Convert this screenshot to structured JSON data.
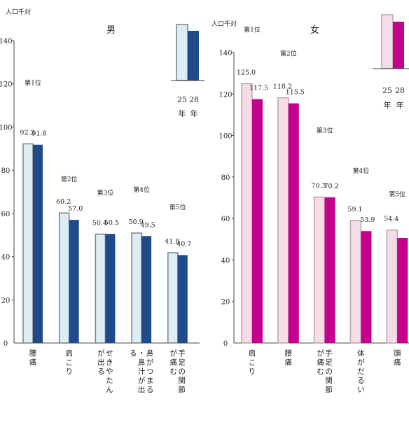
{
  "chart_data": [
    {
      "type": "bar",
      "title": "男",
      "ylabel": "人口千対",
      "ylim": [
        0,
        140
      ],
      "yticks": [
        "0",
        "20",
        "40",
        "60",
        "80",
        "100",
        "120",
        "140"
      ],
      "categories": [
        "腰痛",
        "肩こり",
        "せきやたんが出る",
        "鼻がつまる・鼻汁が出る",
        "手足の関節が痛む"
      ],
      "ranks": [
        "第1位",
        "第2位",
        "第3位",
        "第4位",
        "第5位"
      ],
      "series": [
        {
          "name": "25年",
          "values": [
            92.2,
            60.2,
            50.4,
            50.9,
            41.8
          ],
          "labels": [
            "92.2",
            "60.2",
            "50.4",
            "50.9",
            "41.8"
          ]
        },
        {
          "name": "28年",
          "values": [
            91.8,
            57.0,
            50.5,
            49.5,
            40.7
          ],
          "labels": [
            "91.8",
            "57.0",
            "50.5",
            "49.5",
            "40.7"
          ]
        }
      ],
      "colors": {
        "year25": "#dcedf5",
        "year28": "#1f4b8a"
      },
      "legend": {
        "year_25": "25",
        "year_28": "28",
        "nen": "年"
      },
      "grid": false
    },
    {
      "type": "bar",
      "title": "女",
      "ylabel": "人口千対",
      "ylim": [
        0,
        140
      ],
      "yticks": [
        "0",
        "20",
        "40",
        "60",
        "80",
        "100",
        "120",
        "140"
      ],
      "categories": [
        "肩こり",
        "腰痛",
        "手足の関節が痛む",
        "体がだるい",
        "頭痛"
      ],
      "ranks": [
        "第1位",
        "第2位",
        "第3位",
        "第4位",
        "第5位"
      ],
      "series": [
        {
          "name": "25年",
          "values": [
            125.0,
            118.2,
            70.3,
            59.1,
            54.4
          ],
          "labels": [
            "125.0",
            "118.2",
            "70.3",
            "59.1",
            "54.4"
          ]
        },
        {
          "name": "28年",
          "values": [
            117.5,
            115.5,
            70.2,
            53.9,
            50.6
          ],
          "labels": [
            "117.5",
            "115.5",
            "70.2",
            "53.9",
            ""
          ]
        }
      ],
      "colors": {
        "year25": "#f6dce7",
        "year28": "#c4008c"
      },
      "legend": {
        "year_25": "25",
        "year_28": "28",
        "nen": "年"
      },
      "grid": false
    }
  ]
}
